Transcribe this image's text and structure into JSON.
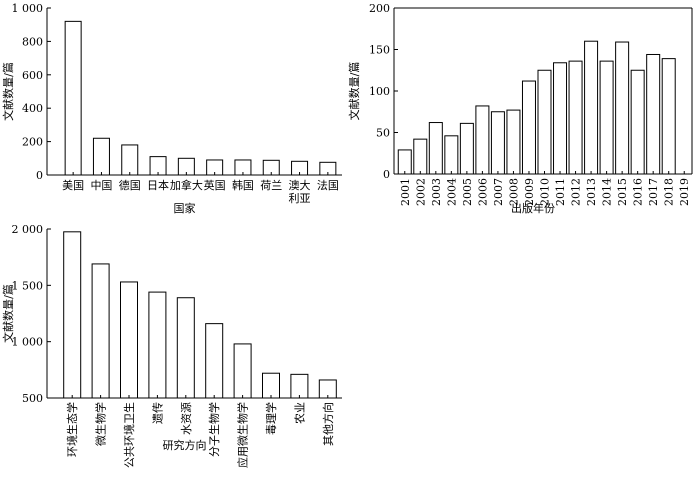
{
  "chart_data": [
    {
      "type": "bar",
      "categories": [
        "美国",
        "中国",
        "德国",
        "日本",
        "加拿大",
        "英国",
        "韩国",
        "荷兰",
        "澳大利亚",
        "法国"
      ],
      "category_lines": [
        [
          "美国"
        ],
        [
          "中国"
        ],
        [
          "德国"
        ],
        [
          "日本"
        ],
        [
          "加拿大"
        ],
        [
          "英国"
        ],
        [
          "韩国"
        ],
        [
          "荷兰"
        ],
        [
          "澳大",
          "利亚"
        ],
        [
          "法国"
        ]
      ],
      "values": [
        920,
        220,
        180,
        110,
        100,
        90,
        90,
        88,
        82,
        76
      ],
      "xlabel": "国家",
      "ylabel": "文献数量/篇",
      "ylim": [
        0,
        1000
      ],
      "yticks": [
        0,
        200,
        400,
        600,
        800,
        1000
      ],
      "ytick_labels": [
        "0",
        "200",
        "400",
        "600",
        "800",
        "1 000"
      ],
      "grid": false
    },
    {
      "type": "bar",
      "categories": [
        "2001",
        "2002",
        "2003",
        "2004",
        "2005",
        "2006",
        "2007",
        "2008",
        "2009",
        "2010",
        "2011",
        "2012",
        "2013",
        "2014",
        "2015",
        "2016",
        "2017",
        "2018",
        "2019"
      ],
      "values": [
        29,
        42,
        62,
        46,
        61,
        82,
        75,
        77,
        112,
        125,
        134,
        136,
        160,
        136,
        159,
        125,
        144,
        139,
        0
      ],
      "xlabel": "出版年份",
      "ylabel": "文献数量/篇",
      "ylim": [
        0,
        200
      ],
      "yticks": [
        0,
        50,
        100,
        150,
        200
      ],
      "ytick_labels": [
        "0",
        "50",
        "100",
        "150",
        "200"
      ],
      "grid": false
    },
    {
      "type": "bar",
      "categories": [
        "环境生态学",
        "微生物学",
        "公共环境卫生",
        "遗传",
        "水资源",
        "分子生物学",
        "应用微生物学",
        "毒理学",
        "农业",
        "其他方向"
      ],
      "values": [
        1975,
        1690,
        1530,
        1440,
        1390,
        1160,
        980,
        720,
        710,
        660
      ],
      "xlabel": "研究方向",
      "ylabel": "文献数量/篇",
      "ylim": [
        500,
        2000
      ],
      "yticks": [
        500,
        1000,
        1500,
        2000
      ],
      "ytick_labels": [
        "500",
        "1 000",
        "1 500",
        "2 000"
      ],
      "grid": false
    }
  ]
}
